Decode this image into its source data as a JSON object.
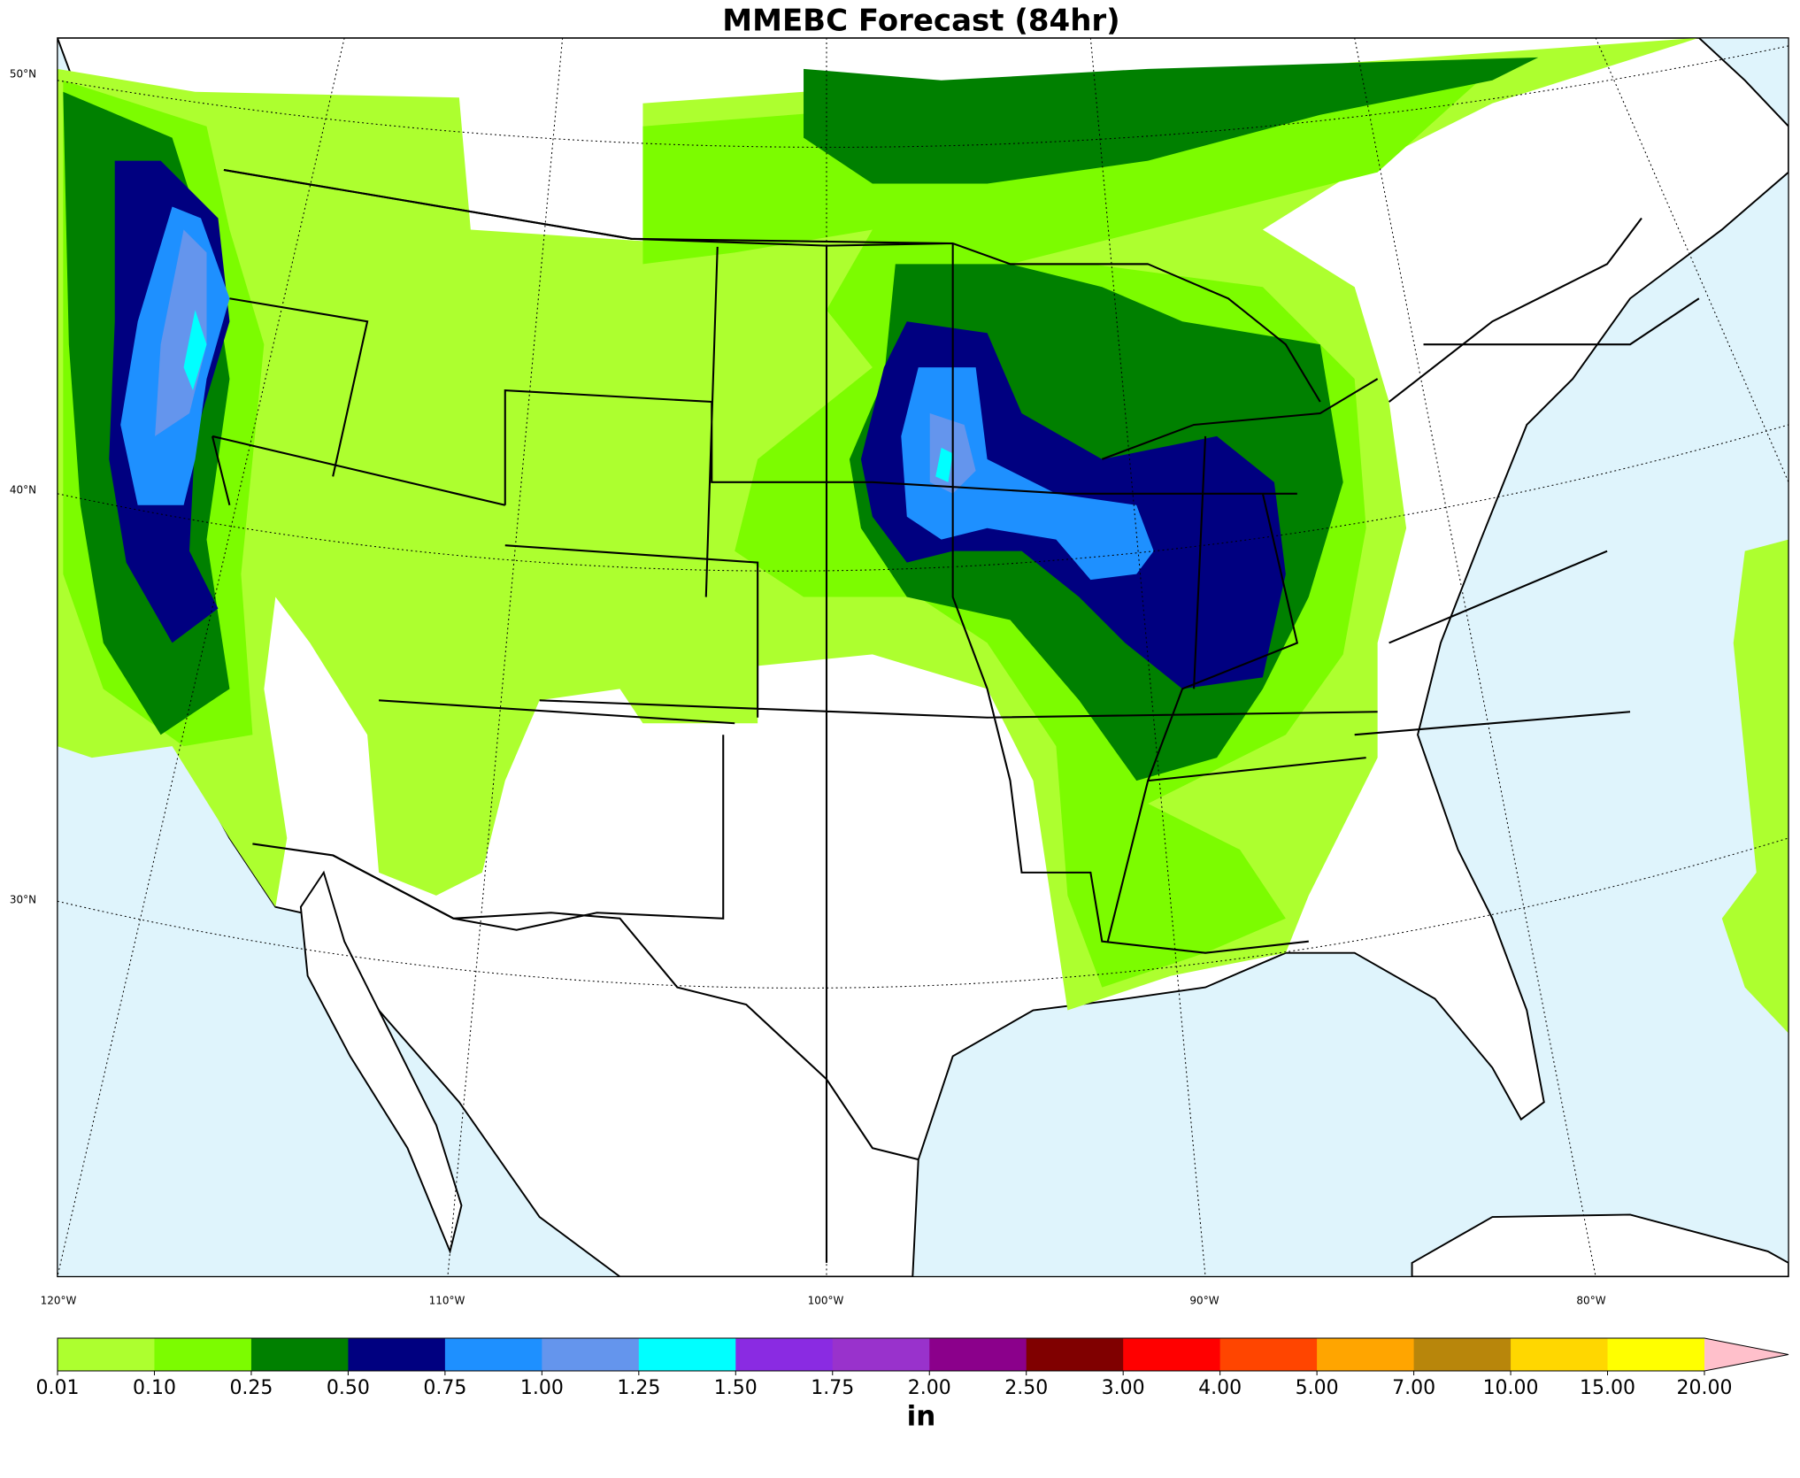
{
  "title": "MMEBC Forecast (84hr)",
  "lat_labels": [
    "50°N",
    "40°N",
    "30°N"
  ],
  "lon_labels": [
    "120°W",
    "110°W",
    "100°W",
    "90°W",
    "80°W"
  ],
  "colorbar": {
    "levels": [
      {
        "value": 0.01,
        "label": "0.01"
      },
      {
        "value": 0.1,
        "label": "0.10"
      },
      {
        "value": 0.25,
        "label": "0.25"
      },
      {
        "value": 0.5,
        "label": "0.50"
      },
      {
        "value": 0.75,
        "label": "0.75"
      },
      {
        "value": 1,
        "label": "1.00"
      },
      {
        "value": 1.25,
        "label": "1.25"
      },
      {
        "value": 1.5,
        "label": "1.50"
      },
      {
        "value": 1.75,
        "label": "1.75"
      },
      {
        "value": 2,
        "label": "2.00"
      },
      {
        "value": 2.5,
        "label": "2.50"
      },
      {
        "value": 3,
        "label": "3.00"
      },
      {
        "value": 4,
        "label": "4.00"
      },
      {
        "value": 5,
        "label": "5.00"
      },
      {
        "value": 7,
        "label": "7.00"
      },
      {
        "value": 10,
        "label": "10.00"
      },
      {
        "value": 15,
        "label": "15.00"
      },
      {
        "value": 20,
        "label": "20.00"
      }
    ],
    "colors": [
      "#adff2f",
      "#7cfc00",
      "#008000",
      "#000080",
      "#1e90ff",
      "#6495ed",
      "#00ffff",
      "#8a2be2",
      "#9932cc",
      "#8b008b",
      "#800000",
      "#ff0000",
      "#ff4500",
      "#ffa500",
      "#b8860b",
      "#ffd700",
      "#ffff00"
    ],
    "extend_color": "#ffc0cb",
    "unit": "in"
  }
}
